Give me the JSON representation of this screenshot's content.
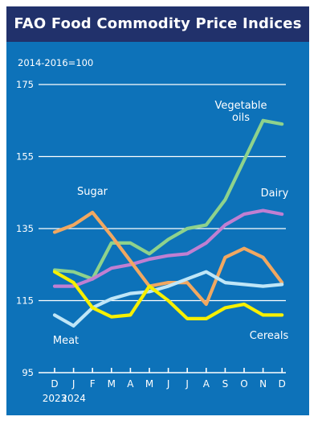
{
  "chart_data": {
    "type": "line",
    "title": "FAO Food Commodity Price Indices",
    "base_note": "2014-2016=100",
    "ylim": [
      95,
      175
    ],
    "y_ticks": [
      95,
      115,
      135,
      155,
      175
    ],
    "x_tick_labels": [
      "D",
      "J",
      "F",
      "M",
      "A",
      "M",
      "J",
      "J",
      "A",
      "S",
      "O",
      "N",
      "D"
    ],
    "year_labels": [
      {
        "label": "2023",
        "index": 0
      },
      {
        "label": "2024",
        "index": 1
      }
    ],
    "grid": true,
    "series": [
      {
        "name": "Vegetable oils",
        "label_lines": [
          "Vegetable",
          "oils"
        ],
        "color": "#8ed28c",
        "values": [
          123.5,
          123,
          121,
          131,
          131,
          128,
          132,
          135,
          136,
          143,
          154,
          165,
          164
        ]
      },
      {
        "name": "Dairy",
        "label_lines": [
          "Dairy"
        ],
        "color": "#c07fd2",
        "values": [
          119,
          119,
          121,
          124,
          125,
          126.5,
          127.5,
          128,
          131,
          136,
          139,
          140,
          139
        ]
      },
      {
        "name": "Sugar",
        "label_lines": [
          "Sugar"
        ],
        "color": "#f1a861",
        "values": [
          134,
          136,
          139.5,
          133,
          126,
          119,
          120,
          120,
          114,
          127,
          129.5,
          127,
          120
        ]
      },
      {
        "name": "Meat",
        "label_lines": [
          "Meat"
        ],
        "color": "#bfe6f7",
        "values": [
          111,
          108,
          113,
          115.5,
          117,
          117.5,
          119,
          121,
          123,
          120,
          119.5,
          119,
          119.5
        ]
      },
      {
        "name": "Cereals",
        "label_lines": [
          "Cereals"
        ],
        "color": "#f7f000",
        "values": [
          123,
          120,
          113,
          110.5,
          111,
          119,
          115,
          110,
          110,
          113,
          114,
          111,
          111
        ]
      }
    ]
  }
}
